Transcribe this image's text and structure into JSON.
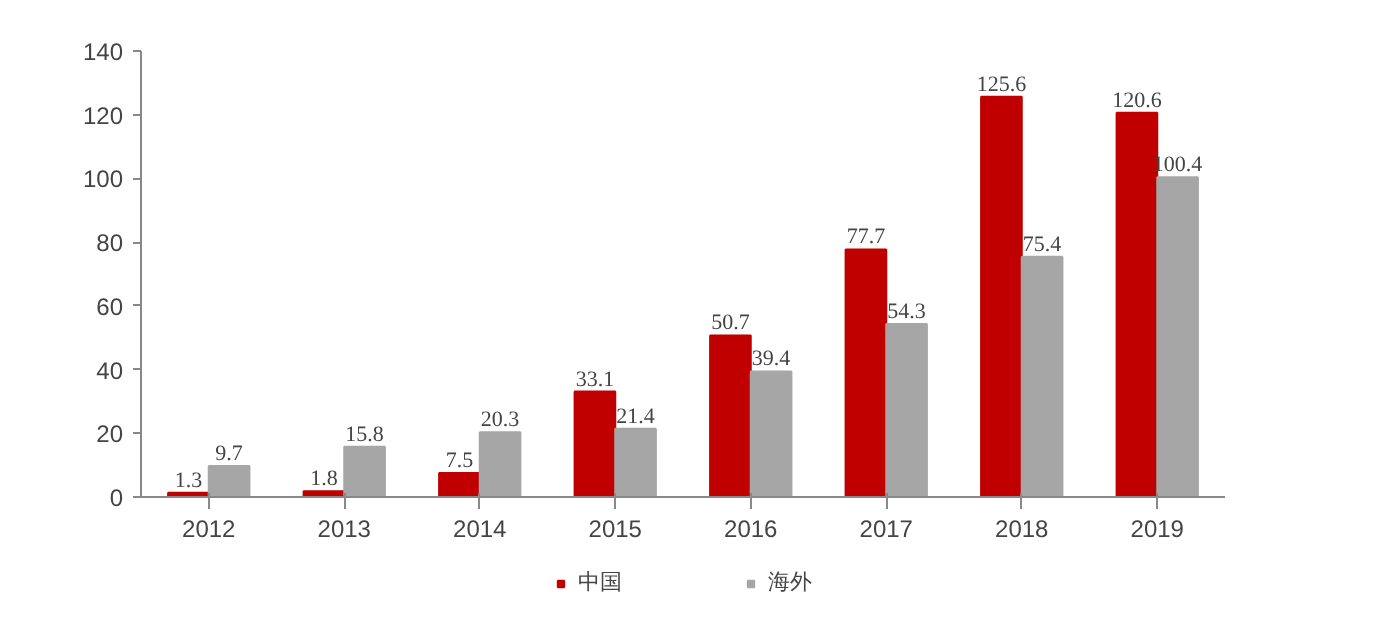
{
  "chart_data": {
    "type": "bar",
    "categories": [
      "2012",
      "2013",
      "2014",
      "2015",
      "2016",
      "2017",
      "2018",
      "2019"
    ],
    "series": [
      {
        "name": "中国",
        "color": "#c00000",
        "values": [
          1.3,
          1.8,
          7.5,
          33.1,
          50.7,
          77.7,
          125.6,
          120.6
        ]
      },
      {
        "name": "海外",
        "color": "#a6a6a6",
        "values": [
          9.7,
          15.8,
          20.3,
          21.4,
          39.4,
          54.3,
          75.4,
          100.4
        ]
      }
    ],
    "ylim": [
      0,
      140
    ],
    "yticks": [
      0,
      20,
      40,
      60,
      80,
      100,
      120,
      140
    ],
    "data_labels": true,
    "grid": false,
    "legend": "bottom"
  }
}
